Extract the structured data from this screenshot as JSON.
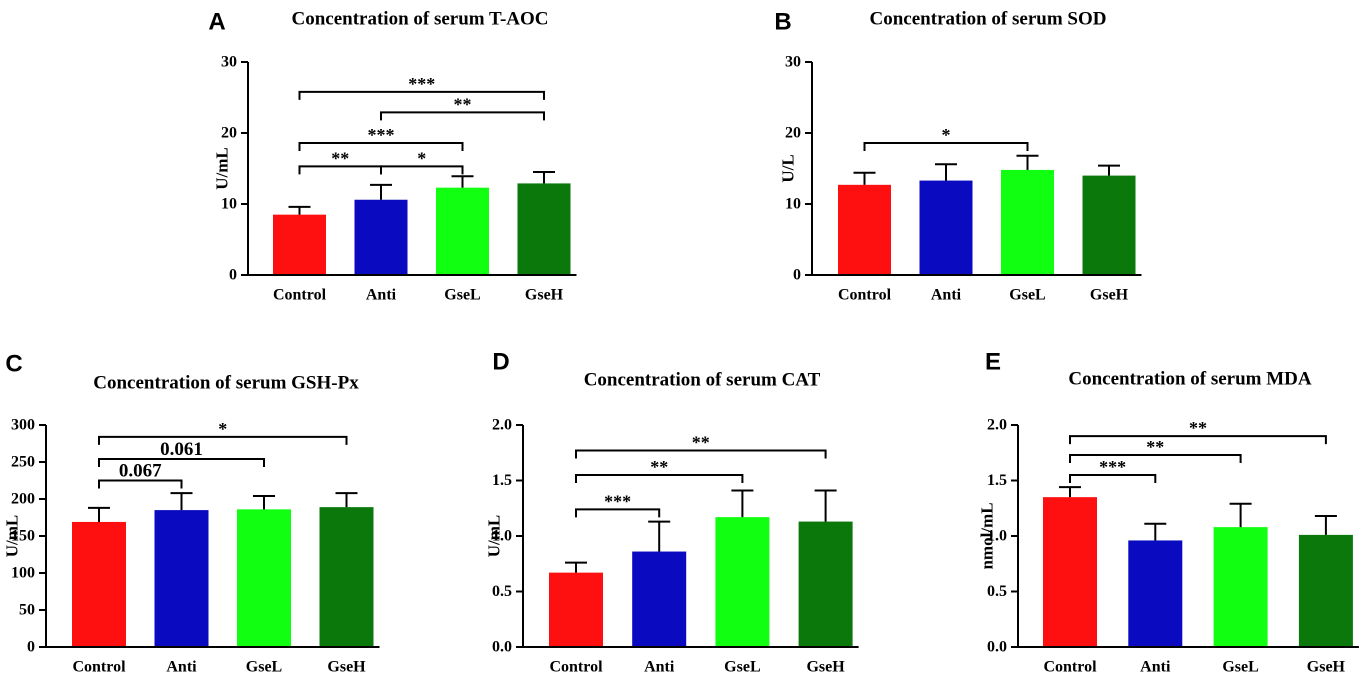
{
  "figure": {
    "colors": {
      "Control": "#ff1010",
      "Anti": "#0a0ac0",
      "GseL": "#11ff11",
      "GseH": "#0b780b",
      "ink": "#000000"
    }
  },
  "chart_data": [
    {
      "type": "bar",
      "panel_label": "A",
      "title": "Concentration of serum T-AOC",
      "xlabel": "",
      "ylabel": "U/mL",
      "categories": [
        "Control",
        "Anti",
        "GseL",
        "GseH"
      ],
      "values": [
        8.5,
        10.6,
        12.3,
        12.9
      ],
      "errors": [
        1.1,
        2.1,
        1.6,
        1.6
      ],
      "ylim": [
        0,
        30
      ],
      "yticks": [
        0,
        10,
        20,
        30
      ],
      "ytick_labels": [
        "0",
        "10",
        "20",
        "30"
      ],
      "annotations": [
        {
          "from": 0,
          "to": 3,
          "y": 25.8,
          "label": "***"
        },
        {
          "from": 1,
          "to": 3,
          "y": 22.9,
          "label": "**"
        },
        {
          "from": 0,
          "to": 2,
          "y": 18.6,
          "label": "***"
        },
        {
          "from": 0,
          "to": 1,
          "y": 15.3,
          "label": "**"
        },
        {
          "from": 1,
          "to": 2,
          "y": 15.3,
          "label": "*"
        }
      ]
    },
    {
      "type": "bar",
      "panel_label": "B",
      "title": "Concentration of serum SOD",
      "xlabel": "",
      "ylabel": "U/L",
      "categories": [
        "Control",
        "Anti",
        "GseL",
        "GseH"
      ],
      "values": [
        12.7,
        13.3,
        14.8,
        14.0
      ],
      "errors": [
        1.7,
        2.3,
        2.0,
        1.4
      ],
      "ylim": [
        0,
        30
      ],
      "yticks": [
        0,
        10,
        20,
        30
      ],
      "ytick_labels": [
        "0",
        "10",
        "20",
        "30"
      ],
      "annotations": [
        {
          "from": 0,
          "to": 2,
          "y": 18.6,
          "label": "*"
        }
      ]
    },
    {
      "type": "bar",
      "panel_label": "C",
      "title": "Concentration of serum GSH-Px",
      "xlabel": "",
      "ylabel": "U/mL",
      "categories": [
        "Control",
        "Anti",
        "GseL",
        "GseH"
      ],
      "values": [
        169,
        185,
        186,
        189
      ],
      "errors": [
        19,
        23,
        18,
        19
      ],
      "ylim": [
        0,
        300
      ],
      "yticks": [
        0,
        50,
        100,
        150,
        200,
        250,
        300
      ],
      "ytick_labels": [
        "0",
        "50",
        "100",
        "150",
        "200",
        "250",
        "300"
      ],
      "annotations": [
        {
          "from": 0,
          "to": 3,
          "y": 284,
          "label": "*"
        },
        {
          "from": 0,
          "to": 2,
          "y": 254,
          "label": "0.061"
        },
        {
          "from": 0,
          "to": 1,
          "y": 225,
          "label": "0.067"
        }
      ]
    },
    {
      "type": "bar",
      "panel_label": "D",
      "title": "Concentration of serum CAT",
      "xlabel": "",
      "ylabel": "U/mL",
      "categories": [
        "Control",
        "Anti",
        "GseL",
        "GseH"
      ],
      "values": [
        0.67,
        0.86,
        1.17,
        1.13
      ],
      "errors": [
        0.09,
        0.27,
        0.24,
        0.28
      ],
      "ylim": [
        0,
        2.0
      ],
      "yticks": [
        0,
        0.5,
        1.0,
        1.5,
        2.0
      ],
      "ytick_labels": [
        "0.0",
        "0.5",
        "1.0",
        "1.5",
        "2.0"
      ],
      "annotations": [
        {
          "from": 0,
          "to": 3,
          "y": 1.77,
          "label": "**"
        },
        {
          "from": 0,
          "to": 2,
          "y": 1.55,
          "label": "**"
        },
        {
          "from": 0,
          "to": 1,
          "y": 1.24,
          "label": "***"
        }
      ]
    },
    {
      "type": "bar",
      "panel_label": "E",
      "title": "Concentration of serum MDA",
      "xlabel": "",
      "ylabel": "nmol/mL",
      "categories": [
        "Control",
        "Anti",
        "GseL",
        "GseH"
      ],
      "values": [
        1.35,
        0.96,
        1.08,
        1.01
      ],
      "errors": [
        0.09,
        0.15,
        0.21,
        0.17
      ],
      "ylim": [
        0,
        2.0
      ],
      "yticks": [
        0,
        0.5,
        1.0,
        1.5,
        2.0
      ],
      "ytick_labels": [
        "0.0",
        "0.5",
        "1.0",
        "1.5",
        "2.0"
      ],
      "annotations": [
        {
          "from": 0,
          "to": 3,
          "y": 1.9,
          "label": "**"
        },
        {
          "from": 0,
          "to": 2,
          "y": 1.73,
          "label": "**"
        },
        {
          "from": 0,
          "to": 1,
          "y": 1.55,
          "label": "***"
        }
      ]
    }
  ]
}
